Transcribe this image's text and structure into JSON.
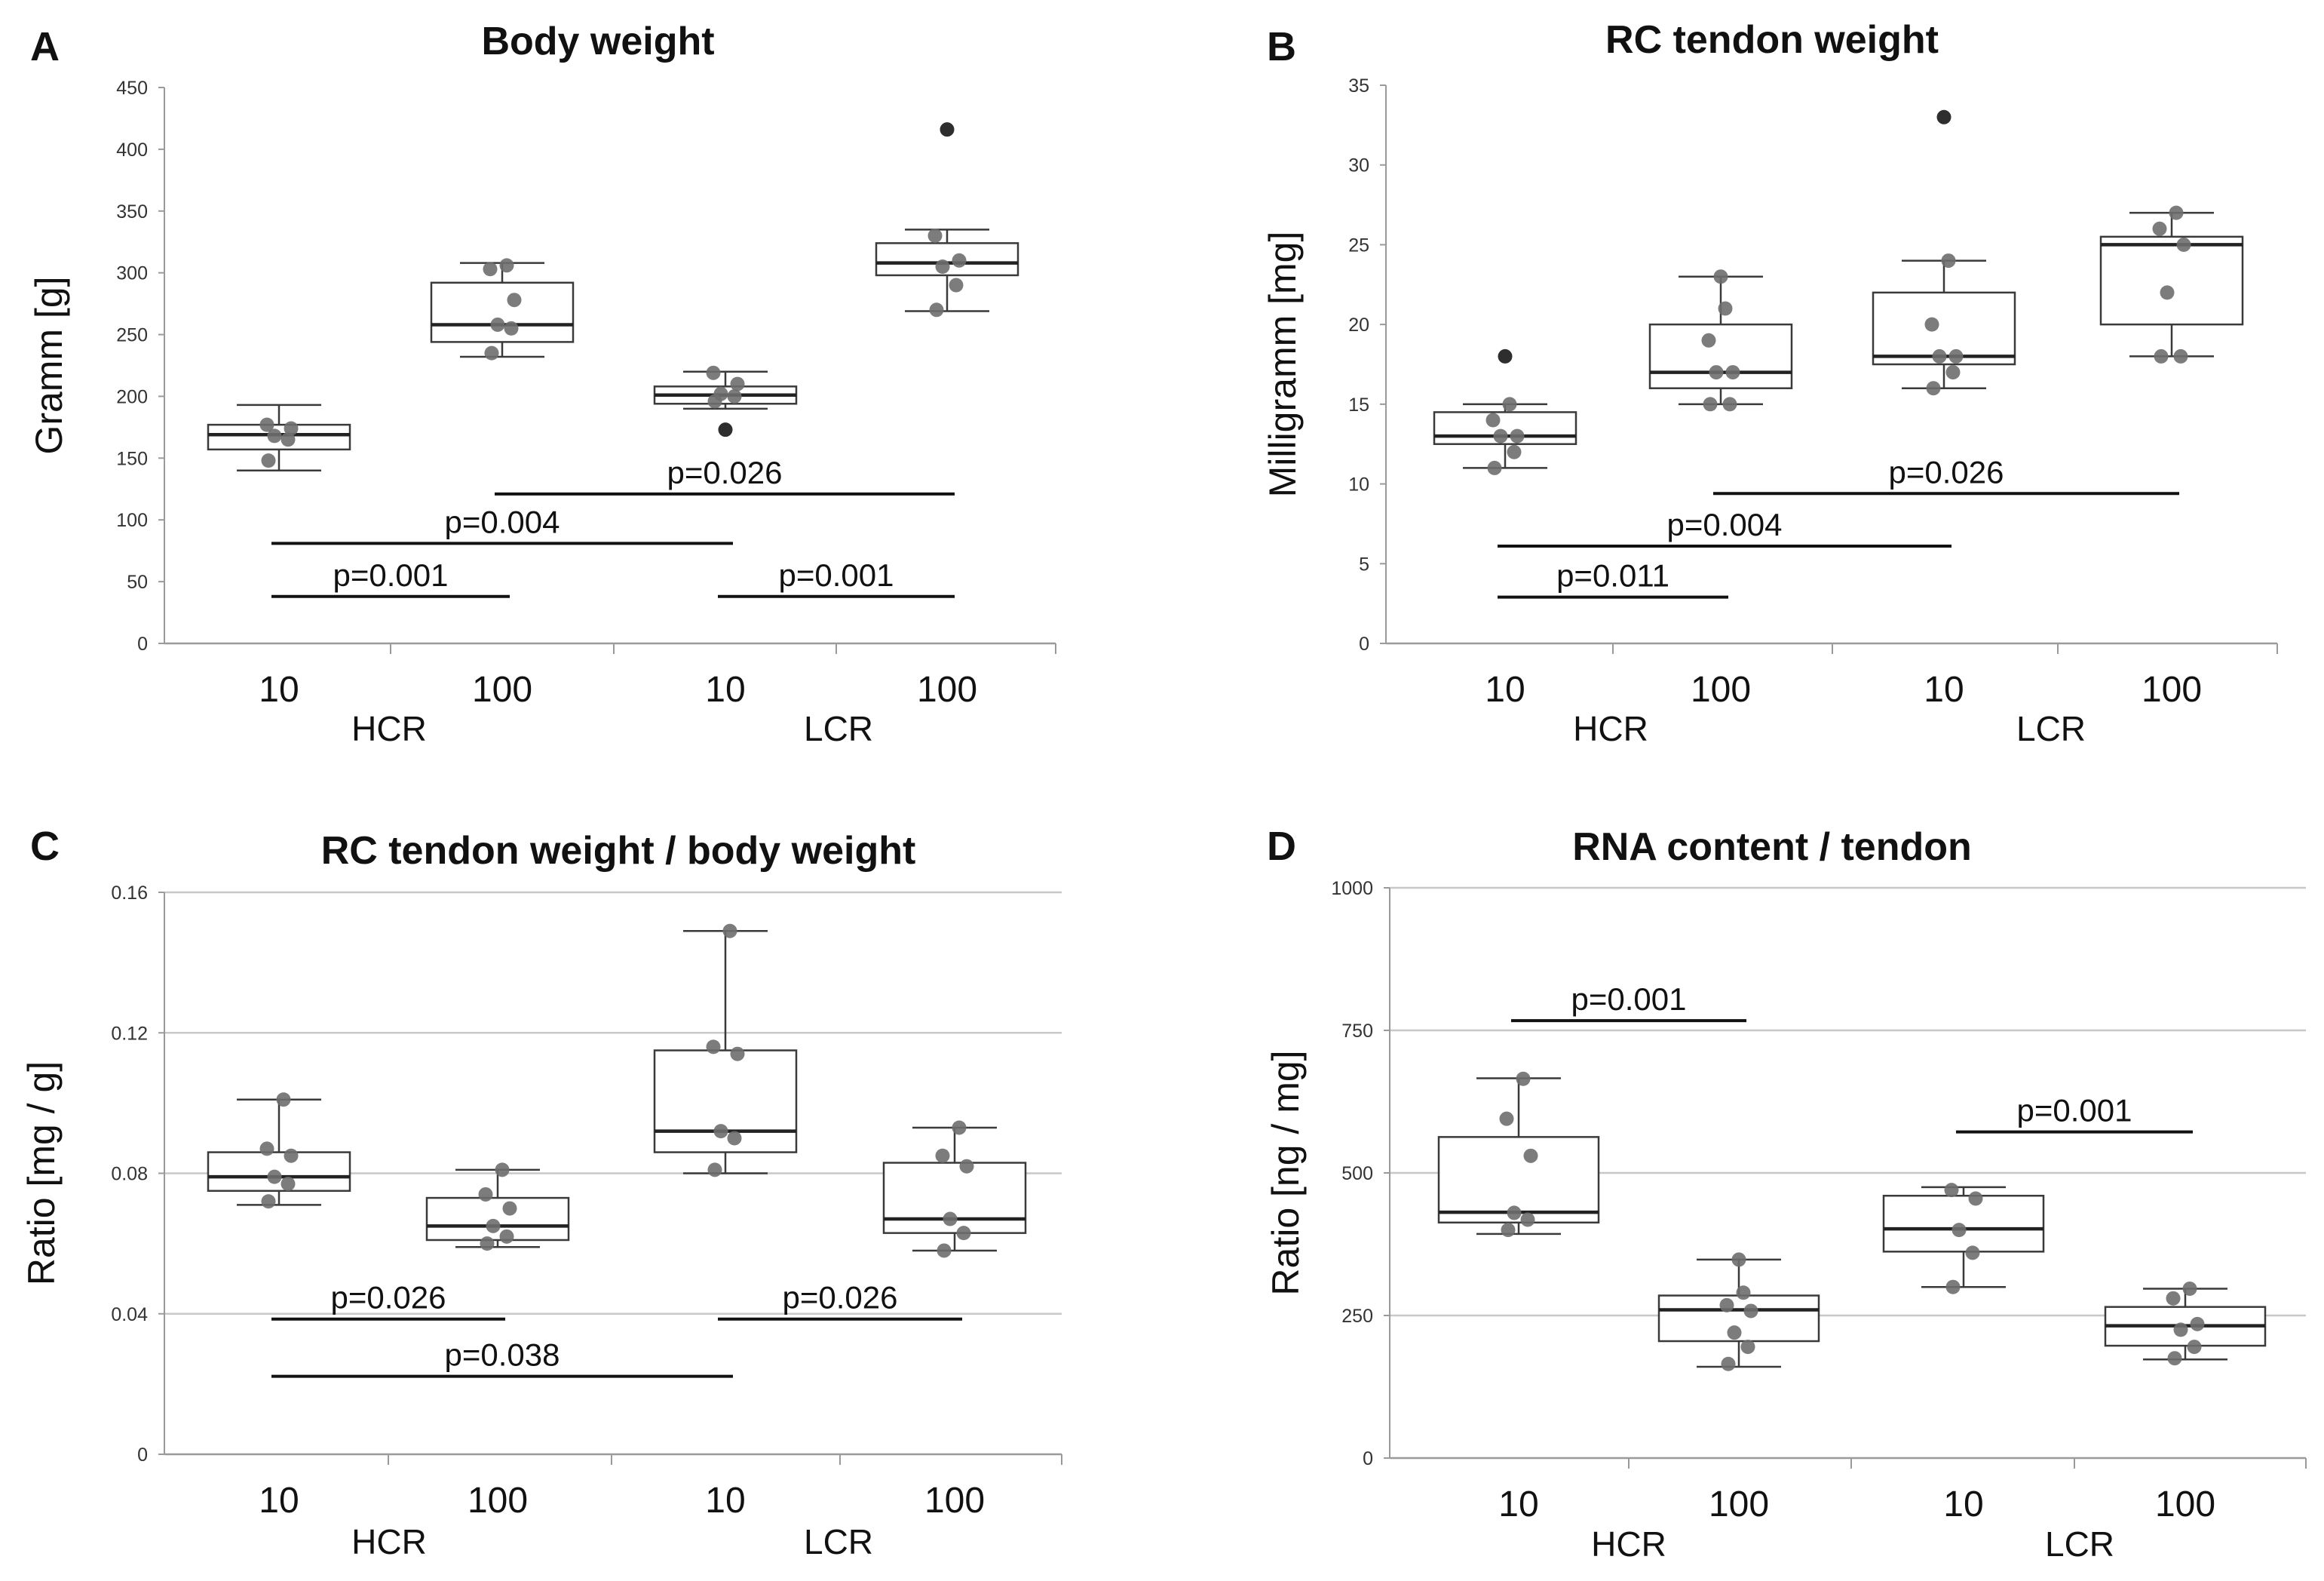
{
  "figure": {
    "panels": [
      {
        "letter": "A",
        "title": "Body weight"
      },
      {
        "letter": "B",
        "title": "RC tendon weight"
      },
      {
        "letter": "C",
        "title": "RC tendon weight  / body weight"
      },
      {
        "letter": "D",
        "title": "RNA content / tendon"
      }
    ]
  },
  "colors": {
    "box_stroke": "#3a3a3a",
    "median": "#222222",
    "point": "#6e6e6e",
    "outlier": "#2e2e2e",
    "grid": "#c8c8c8",
    "axis": "#9a9a9a",
    "bar": "#111111"
  },
  "chart_data": [
    {
      "type": "box",
      "panel": "A",
      "title": "Body weight",
      "ylabel": "Gramm [g]",
      "ylim": [
        0,
        450
      ],
      "yticks": [
        0,
        50,
        100,
        150,
        200,
        250,
        300,
        350,
        400,
        450
      ],
      "gridlines": false,
      "categories": [
        "10",
        "100",
        "10",
        "100"
      ],
      "groups": [
        "HCR",
        "LCR"
      ],
      "boxes": [
        {
          "min": 140,
          "q1": 157,
          "median": 169,
          "q3": 177,
          "max": 193,
          "points": [
            148,
            165,
            168,
            174,
            177
          ],
          "outliers": []
        },
        {
          "min": 232,
          "q1": 244,
          "median": 258,
          "q3": 292,
          "max": 308,
          "points": [
            235,
            255,
            258,
            278,
            303,
            306
          ],
          "outliers": []
        },
        {
          "min": 190,
          "q1": 194,
          "median": 201,
          "q3": 208,
          "max": 220,
          "points": [
            196,
            200,
            202,
            210,
            219
          ],
          "outliers": [
            173
          ]
        },
        {
          "min": 269,
          "q1": 298,
          "median": 308,
          "q3": 324,
          "max": 335,
          "points": [
            270,
            290,
            305,
            310,
            330
          ],
          "outliers": [
            416
          ]
        }
      ],
      "comparisons": [
        {
          "from": 0,
          "to": 1,
          "y": 38,
          "label": "p=0.001"
        },
        {
          "from": 0,
          "to": 2,
          "y": 81,
          "label": "p=0.004"
        },
        {
          "from": 1,
          "to": 3,
          "y": 121,
          "label": "p=0.026"
        },
        {
          "from": 2,
          "to": 3,
          "y": 38,
          "label": "p=0.001"
        }
      ]
    },
    {
      "type": "box",
      "panel": "B",
      "title": "RC tendon weight",
      "ylabel": "Milligramm [mg]",
      "ylim": [
        0,
        35
      ],
      "yticks": [
        0,
        5,
        10,
        15,
        20,
        25,
        30,
        35
      ],
      "gridlines": false,
      "categories": [
        "10",
        "100",
        "10",
        "100"
      ],
      "groups": [
        "HCR",
        "LCR"
      ],
      "boxes": [
        {
          "min": 11,
          "q1": 12.5,
          "median": 13,
          "q3": 14.5,
          "max": 15,
          "points": [
            11,
            12,
            13,
            13,
            14,
            15
          ],
          "outliers": [
            18
          ]
        },
        {
          "min": 15,
          "q1": 16,
          "median": 17,
          "q3": 20,
          "max": 23,
          "points": [
            15,
            15,
            17,
            17,
            19,
            21,
            23
          ],
          "outliers": []
        },
        {
          "min": 16,
          "q1": 17.5,
          "median": 18,
          "q3": 22,
          "max": 24,
          "points": [
            16,
            17,
            18,
            18,
            20,
            24
          ],
          "outliers": [
            33
          ]
        },
        {
          "min": 18,
          "q1": 20,
          "median": 25,
          "q3": 25.5,
          "max": 27,
          "points": [
            18,
            18,
            22,
            25,
            26,
            27
          ],
          "outliers": []
        }
      ],
      "comparisons": [
        {
          "from": 0,
          "to": 1,
          "y": 2.9,
          "label": "p=0.011"
        },
        {
          "from": 0,
          "to": 2,
          "y": 6.1,
          "label": "p=0.004"
        },
        {
          "from": 1,
          "to": 3,
          "y": 9.4,
          "label": "p=0.026"
        }
      ]
    },
    {
      "type": "box",
      "panel": "C",
      "title": "RC tendon weight  / body weight",
      "ylabel": "Ratio [mg / g]",
      "ylim": [
        0,
        0.16
      ],
      "yticks": [
        0,
        0.04,
        0.08,
        0.12,
        0.16
      ],
      "gridlines": true,
      "categories": [
        "10",
        "100",
        "10",
        "100"
      ],
      "groups": [
        "HCR",
        "LCR"
      ],
      "boxes": [
        {
          "min": 0.071,
          "q1": 0.075,
          "median": 0.079,
          "q3": 0.086,
          "max": 0.101,
          "points": [
            0.072,
            0.077,
            0.079,
            0.085,
            0.087,
            0.101
          ],
          "outliers": []
        },
        {
          "min": 0.059,
          "q1": 0.061,
          "median": 0.065,
          "q3": 0.073,
          "max": 0.081,
          "points": [
            0.06,
            0.062,
            0.065,
            0.07,
            0.074,
            0.081
          ],
          "outliers": []
        },
        {
          "min": 0.08,
          "q1": 0.086,
          "median": 0.092,
          "q3": 0.115,
          "max": 0.149,
          "points": [
            0.081,
            0.09,
            0.092,
            0.114,
            0.116,
            0.149
          ],
          "outliers": []
        },
        {
          "min": 0.058,
          "q1": 0.063,
          "median": 0.067,
          "q3": 0.083,
          "max": 0.093,
          "points": [
            0.058,
            0.063,
            0.067,
            0.082,
            0.085,
            0.093
          ],
          "outliers": []
        }
      ],
      "comparisons": [
        {
          "from": 0,
          "to": 1,
          "y": 0.0385,
          "label": "p=0.026"
        },
        {
          "from": 0,
          "to": 2,
          "y": 0.0222,
          "label": "p=0.038"
        },
        {
          "from": 2,
          "to": 3,
          "y": 0.0385,
          "label": "p=0.026"
        }
      ]
    },
    {
      "type": "box",
      "panel": "D",
      "title": "RNA content / tendon",
      "ylabel": "Ratio [ng / mg]",
      "ylim": [
        0,
        1000
      ],
      "yticks": [
        0,
        250,
        500,
        750,
        1000
      ],
      "gridlines": true,
      "categories": [
        "10",
        "100",
        "10",
        "100"
      ],
      "groups": [
        "HCR",
        "LCR"
      ],
      "boxes": [
        {
          "min": 393,
          "q1": 413,
          "median": 431,
          "q3": 563,
          "max": 666,
          "points": [
            400,
            418,
            430,
            530,
            595,
            665
          ],
          "outliers": []
        },
        {
          "min": 160,
          "q1": 205,
          "median": 260,
          "q3": 285,
          "max": 348,
          "points": [
            165,
            195,
            220,
            258,
            268,
            290,
            348
          ],
          "outliers": []
        },
        {
          "min": 300,
          "q1": 362,
          "median": 402,
          "q3": 460,
          "max": 475,
          "points": [
            300,
            360,
            400,
            455,
            470
          ],
          "outliers": []
        },
        {
          "min": 173,
          "q1": 197,
          "median": 232,
          "q3": 265,
          "max": 297,
          "points": [
            175,
            195,
            225,
            235,
            280,
            297
          ],
          "outliers": []
        }
      ],
      "comparisons": [
        {
          "from": 0,
          "to": 1,
          "y": 767,
          "label": "p=0.001"
        },
        {
          "from": 2,
          "to": 3,
          "y": 572,
          "label": "p=0.001"
        }
      ]
    }
  ]
}
